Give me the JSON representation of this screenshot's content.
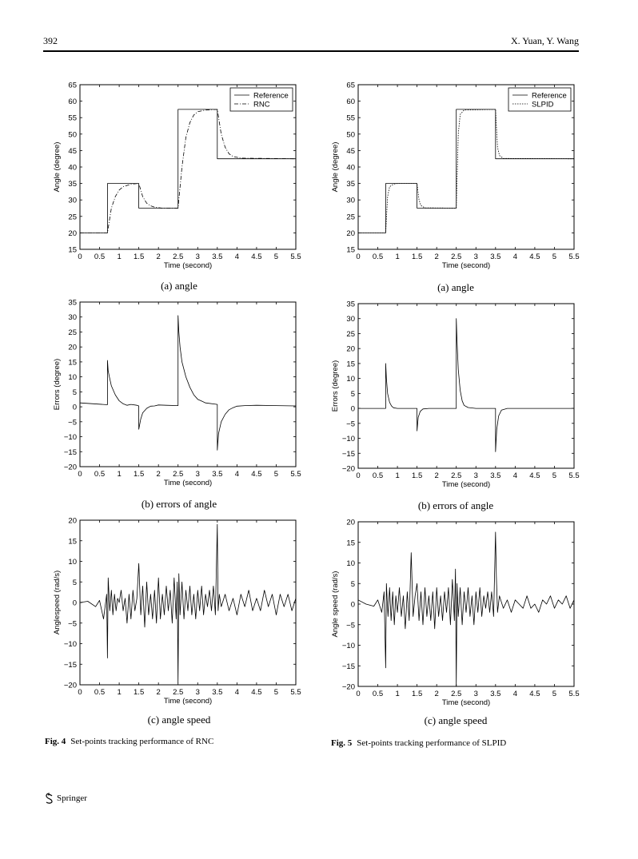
{
  "header": {
    "page_number": "392",
    "authors": "X. Yuan, Y. Wang"
  },
  "footer": {
    "publisher": "Springer"
  },
  "figures": [
    {
      "label": "Fig. 4",
      "caption": "Set-points tracking performance of RNC"
    },
    {
      "label": "Fig. 5",
      "caption": "Set-points tracking performance of SLPID"
    }
  ],
  "chart_data": [
    {
      "id": "fig4a",
      "type": "line",
      "subcaption": "(a) angle",
      "xlabel": "Time (second)",
      "ylabel": "Angle (degree)",
      "xlim": [
        0,
        5.5
      ],
      "ylim": [
        15,
        65
      ],
      "xticks": [
        0,
        0.5,
        1,
        1.5,
        2,
        2.5,
        3,
        3.5,
        4,
        4.5,
        5,
        5.5
      ],
      "yticks": [
        15,
        20,
        25,
        30,
        35,
        40,
        45,
        50,
        55,
        60,
        65
      ],
      "legend": {
        "position": "top-right",
        "entries": [
          "Reference",
          "RNC"
        ]
      },
      "series": [
        {
          "name": "Reference",
          "style": "solid",
          "step": true,
          "x": [
            0,
            0.7,
            0.7,
            1.5,
            1.5,
            2.5,
            2.5,
            3.5,
            3.5,
            5.5
          ],
          "y": [
            20,
            20,
            35,
            35,
            27.5,
            27.5,
            57.5,
            57.5,
            42.5,
            42.5
          ]
        },
        {
          "name": "RNC",
          "style": "dashdot",
          "x": [
            0,
            0.7,
            0.8,
            0.9,
            1.0,
            1.1,
            1.3,
            1.5,
            1.6,
            1.7,
            1.8,
            1.9,
            2.1,
            2.5,
            2.6,
            2.7,
            2.8,
            2.9,
            3.0,
            3.2,
            3.5,
            3.6,
            3.7,
            3.8,
            3.9,
            4.1,
            5.5
          ],
          "y": [
            20,
            20,
            27.5,
            31,
            33,
            34,
            34.8,
            35,
            31,
            29,
            28.2,
            27.8,
            27.5,
            27.5,
            40,
            49,
            53.5,
            55.8,
            56.8,
            57.3,
            57.5,
            50,
            46,
            44,
            43.2,
            42.7,
            42.5
          ]
        }
      ]
    },
    {
      "id": "fig4b",
      "type": "line",
      "subcaption": "(b) errors of angle",
      "xlabel": "Time (second)",
      "ylabel": "Errors (degree)",
      "xlim": [
        0,
        5.5
      ],
      "ylim": [
        -20,
        35
      ],
      "xticks": [
        0,
        0.5,
        1,
        1.5,
        2,
        2.5,
        3,
        3.5,
        4,
        4.5,
        5,
        5.5
      ],
      "yticks": [
        -20,
        -15,
        -10,
        -5,
        0,
        5,
        10,
        15,
        20,
        25,
        30,
        35
      ],
      "series": [
        {
          "name": "",
          "style": "solid",
          "x": [
            0,
            0.7,
            0.7,
            0.72,
            0.75,
            0.8,
            0.9,
            1.0,
            1.1,
            1.2,
            1.3,
            1.45,
            1.5,
            1.5,
            1.55,
            1.6,
            1.7,
            1.8,
            1.9,
            2.0,
            2.2,
            2.5,
            2.5,
            2.52,
            2.55,
            2.6,
            2.7,
            2.8,
            2.9,
            3.0,
            3.2,
            3.5,
            3.5,
            3.53,
            3.6,
            3.7,
            3.8,
            3.9,
            4.0,
            4.2,
            4.5,
            5.0,
            5.5
          ],
          "y": [
            1.3,
            0.7,
            15.5,
            12,
            10,
            7,
            4,
            2,
            1,
            0.5,
            0.8,
            0.5,
            0.3,
            -7.5,
            -4,
            -2,
            -0.5,
            0.2,
            0.3,
            0.6,
            0.5,
            0.4,
            30.5,
            25,
            20,
            15,
            10,
            6.5,
            4,
            2.5,
            1.3,
            0.8,
            -14.5,
            -9,
            -5,
            -2.5,
            -1,
            -0.3,
            0.2,
            0.4,
            0.5,
            0.4,
            0.3
          ]
        }
      ]
    },
    {
      "id": "fig4c",
      "type": "line",
      "subcaption": "(c) angle speed",
      "xlabel": "Time (second)",
      "ylabel": "Anglespeed (rad/s)",
      "xlim": [
        0,
        5.5
      ],
      "ylim": [
        -20,
        20
      ],
      "xticks": [
        0,
        0.5,
        1,
        1.5,
        2,
        2.5,
        3,
        3.5,
        4,
        4.5,
        5,
        5.5
      ],
      "yticks": [
        -20,
        -15,
        -10,
        -5,
        0,
        5,
        10,
        15,
        20
      ],
      "series": [
        {
          "name": "",
          "style": "solid",
          "x": [
            0,
            0.2,
            0.4,
            0.5,
            0.6,
            0.68,
            0.7,
            0.72,
            0.76,
            0.8,
            0.84,
            0.88,
            0.92,
            0.96,
            1.0,
            1.05,
            1.1,
            1.15,
            1.2,
            1.25,
            1.3,
            1.35,
            1.4,
            1.45,
            1.5,
            1.55,
            1.6,
            1.65,
            1.7,
            1.75,
            1.8,
            1.85,
            1.9,
            1.95,
            2.0,
            2.05,
            2.1,
            2.15,
            2.2,
            2.25,
            2.3,
            2.35,
            2.4,
            2.45,
            2.48,
            2.5,
            2.52,
            2.55,
            2.6,
            2.65,
            2.7,
            2.75,
            2.8,
            2.85,
            2.9,
            2.95,
            3.0,
            3.05,
            3.1,
            3.15,
            3.2,
            3.25,
            3.3,
            3.35,
            3.4,
            3.45,
            3.5,
            3.52,
            3.55,
            3.6,
            3.7,
            3.8,
            3.9,
            4.0,
            4.1,
            4.2,
            4.3,
            4.4,
            4.5,
            4.6,
            4.7,
            4.8,
            4.9,
            5.0,
            5.1,
            5.2,
            5.3,
            5.4,
            5.5
          ],
          "y": [
            0,
            0.3,
            -1,
            0.5,
            -4,
            2,
            -13.5,
            6,
            -2,
            3,
            -3,
            2,
            -2,
            1,
            0,
            3,
            -2,
            1,
            -5,
            2,
            -4,
            3,
            -2,
            1,
            9.5,
            -3,
            4,
            -6,
            5,
            -3,
            2,
            -4,
            3,
            -5,
            6,
            -4,
            2,
            -3,
            4,
            -2,
            3,
            -5,
            6,
            -4,
            5,
            -19.5,
            7,
            -3,
            5,
            -4,
            3,
            -2,
            4,
            -3,
            2,
            -4,
            3,
            -2,
            4,
            -3,
            2,
            -1,
            3,
            -2,
            4,
            -3,
            19,
            -2,
            2,
            -1,
            2,
            -2,
            1,
            -3,
            2,
            -1,
            3,
            -2,
            1,
            -2,
            3,
            -1,
            2,
            -3,
            2,
            -1,
            2,
            -2,
            1
          ]
        }
      ]
    },
    {
      "id": "fig5a",
      "type": "line",
      "subcaption": "(a) angle",
      "xlabel": "Time (second)",
      "ylabel": "Angle (degree)",
      "xlim": [
        0,
        5.5
      ],
      "ylim": [
        15,
        65
      ],
      "xticks": [
        0,
        0.5,
        1,
        1.5,
        2,
        2.5,
        3,
        3.5,
        4,
        4.5,
        5,
        5.5
      ],
      "yticks": [
        15,
        20,
        25,
        30,
        35,
        40,
        45,
        50,
        55,
        60,
        65
      ],
      "legend": {
        "position": "top-right",
        "entries": [
          "Reference",
          "SLPID"
        ]
      },
      "series": [
        {
          "name": "Reference",
          "style": "solid",
          "step": true,
          "x": [
            0,
            0.7,
            0.7,
            1.5,
            1.5,
            2.5,
            2.5,
            3.5,
            3.5,
            5.5
          ],
          "y": [
            20,
            20,
            35,
            35,
            27.5,
            27.5,
            57.5,
            57.5,
            42.5,
            42.5
          ]
        },
        {
          "name": "SLPID",
          "style": "dotted",
          "x": [
            0,
            0.7,
            0.75,
            0.8,
            0.9,
            1.0,
            1.5,
            1.55,
            1.6,
            1.7,
            2.5,
            2.55,
            2.6,
            2.7,
            3.5,
            3.55,
            3.6,
            3.7,
            5.5
          ],
          "y": [
            20,
            20,
            31,
            34,
            34.8,
            35,
            35,
            30,
            28.3,
            27.6,
            27.5,
            50,
            56,
            57.3,
            57.5,
            46,
            43.5,
            42.6,
            42.5
          ]
        }
      ]
    },
    {
      "id": "fig5b",
      "type": "line",
      "subcaption": "(b) errors of angle",
      "xlabel": "Time (second)",
      "ylabel": "Errors (degree)",
      "xlim": [
        0,
        5.5
      ],
      "ylim": [
        -20,
        35
      ],
      "xticks": [
        0,
        0.5,
        1,
        1.5,
        2,
        2.5,
        3,
        3.5,
        4,
        4.5,
        5,
        5.5
      ],
      "yticks": [
        -20,
        -15,
        -10,
        -5,
        0,
        5,
        10,
        15,
        20,
        25,
        30,
        35
      ],
      "series": [
        {
          "name": "",
          "style": "solid",
          "x": [
            0,
            0.7,
            0.7,
            0.72,
            0.75,
            0.8,
            0.85,
            0.9,
            1.0,
            1.5,
            1.5,
            1.53,
            1.58,
            1.65,
            1.8,
            2.5,
            2.5,
            2.52,
            2.55,
            2.6,
            2.65,
            2.7,
            2.8,
            3.0,
            3.5,
            3.5,
            3.53,
            3.58,
            3.65,
            3.8,
            5.5
          ],
          "y": [
            0,
            0,
            15,
            10,
            5,
            2,
            0.8,
            0.2,
            0,
            0,
            -7.5,
            -3,
            -1,
            -0.2,
            0,
            0,
            30,
            22,
            13,
            6,
            2.5,
            1,
            0.3,
            0,
            0,
            -14.5,
            -7,
            -2.5,
            -0.6,
            0,
            0
          ]
        }
      ]
    },
    {
      "id": "fig5c",
      "type": "line",
      "subcaption": "(c) angle speed",
      "xlabel": "Time (second)",
      "ylabel": "Angle speed (rad/s)",
      "xlim": [
        0,
        5.5
      ],
      "ylim": [
        -20,
        20
      ],
      "xticks": [
        0,
        0.5,
        1,
        1.5,
        2,
        2.5,
        3,
        3.5,
        4,
        4.5,
        5,
        5.5
      ],
      "yticks": [
        -20,
        -15,
        -10,
        -5,
        0,
        5,
        10,
        15,
        20
      ],
      "series": [
        {
          "name": "",
          "style": "solid",
          "x": [
            0,
            0.2,
            0.4,
            0.5,
            0.6,
            0.66,
            0.7,
            0.72,
            0.76,
            0.8,
            0.84,
            0.88,
            0.92,
            0.96,
            1.0,
            1.05,
            1.1,
            1.15,
            1.2,
            1.25,
            1.3,
            1.35,
            1.4,
            1.45,
            1.5,
            1.55,
            1.6,
            1.65,
            1.7,
            1.75,
            1.8,
            1.85,
            1.9,
            1.95,
            2.0,
            2.05,
            2.1,
            2.15,
            2.2,
            2.25,
            2.3,
            2.35,
            2.4,
            2.45,
            2.48,
            2.5,
            2.52,
            2.55,
            2.6,
            2.65,
            2.7,
            2.75,
            2.8,
            2.85,
            2.9,
            2.95,
            3.0,
            3.05,
            3.1,
            3.15,
            3.2,
            3.25,
            3.3,
            3.35,
            3.4,
            3.45,
            3.5,
            3.52,
            3.55,
            3.6,
            3.7,
            3.8,
            3.9,
            4.0,
            4.1,
            4.2,
            4.3,
            4.4,
            4.5,
            4.6,
            4.7,
            4.8,
            4.9,
            5.0,
            5.1,
            5.2,
            5.3,
            5.4,
            5.5
          ],
          "y": [
            1,
            0,
            -0.5,
            1,
            -2,
            3,
            -15.5,
            5,
            -3,
            4,
            -4,
            3,
            -5,
            2,
            -2,
            4,
            -3,
            2,
            -6,
            3,
            -4,
            12.5,
            -3,
            2,
            5,
            -4,
            3,
            -5,
            4,
            -3,
            2,
            -4,
            3,
            -6,
            4,
            -3,
            2,
            -4,
            3,
            -2,
            4,
            -5,
            6,
            -4,
            8.5,
            -20,
            5,
            -3,
            4,
            -5,
            3,
            -2,
            4,
            -3,
            2,
            -5,
            3,
            -2,
            4,
            -3,
            2,
            -1,
            3,
            -2,
            3,
            -3,
            17.5,
            7,
            -2,
            2,
            -1,
            1,
            -2,
            1,
            0,
            -1,
            2,
            -1,
            0,
            -2,
            1,
            0,
            2,
            -1,
            1,
            0,
            2,
            -1,
            1
          ]
        }
      ]
    }
  ]
}
